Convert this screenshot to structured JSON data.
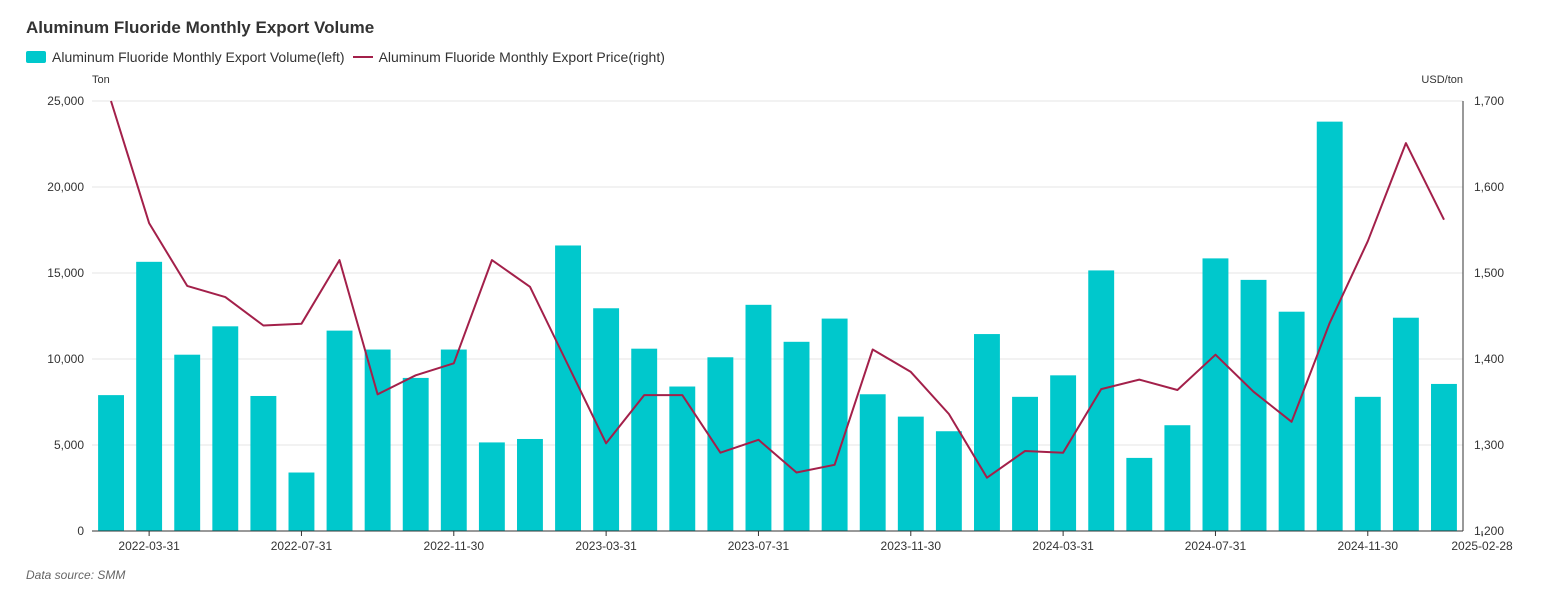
{
  "title": "Aluminum Fluoride Monthly Export Volume",
  "source": "Data source:  SMM",
  "colors": {
    "bar": "#00C8CC",
    "line": "#A3204A",
    "grid": "#E6E6E6",
    "axis": "#333333"
  },
  "chart_data": {
    "type": "bar",
    "title": "Aluminum Fluoride Monthly Export Volume",
    "legend_position": "top-left",
    "grid": true,
    "y_left": {
      "label": "Ton",
      "ylim": [
        0,
        25000
      ],
      "ticks": [
        "0",
        "5,000",
        "10,000",
        "15,000",
        "20,000",
        "25,000"
      ]
    },
    "y_right": {
      "label": "USD/ton",
      "ylim": [
        1200,
        1700
      ],
      "ticks": [
        "1,200",
        "1,300",
        "1,400",
        "1,500",
        "1,600",
        "1,700"
      ]
    },
    "x_tick_labels": [
      {
        "index": 1,
        "label": "2022-03-31"
      },
      {
        "index": 5,
        "label": "2022-07-31"
      },
      {
        "index": 9,
        "label": "2022-11-30"
      },
      {
        "index": 13,
        "label": "2023-03-31"
      },
      {
        "index": 17,
        "label": "2023-07-31"
      },
      {
        "index": 21,
        "label": "2023-11-30"
      },
      {
        "index": 25,
        "label": "2024-03-31"
      },
      {
        "index": 29,
        "label": "2024-07-31"
      },
      {
        "index": 33,
        "label": "2024-11-30"
      },
      {
        "index": 36,
        "label": "2025-02-28"
      }
    ],
    "series": [
      {
        "name": "Aluminum Fluoride Monthly Export Volume(left)",
        "type": "bar",
        "axis": "left",
        "values": [
          7900,
          15650,
          10250,
          11900,
          7850,
          3400,
          11650,
          10550,
          8900,
          10550,
          5150,
          5350,
          16600,
          12950,
          10600,
          8400,
          10100,
          13150,
          11000,
          12350,
          7950,
          6650,
          5800,
          11450,
          7800,
          9050,
          15150,
          4250,
          6150,
          15850,
          14600,
          12750,
          23800,
          7800,
          12400,
          8550
        ]
      },
      {
        "name": "Aluminum Fluoride Monthly Export Price(right)",
        "type": "line",
        "axis": "right",
        "values": [
          1700,
          1558,
          1485,
          1472,
          1439,
          1441,
          1515,
          1359,
          1381,
          1395,
          1515,
          1484,
          1393,
          1302,
          1358,
          1358,
          1291,
          1306,
          1268,
          1277,
          1411,
          1385,
          1336,
          1262,
          1293,
          1291,
          1365,
          1376,
          1364,
          1405,
          1362,
          1327,
          1442,
          1537,
          1651,
          1562
        ]
      }
    ]
  }
}
